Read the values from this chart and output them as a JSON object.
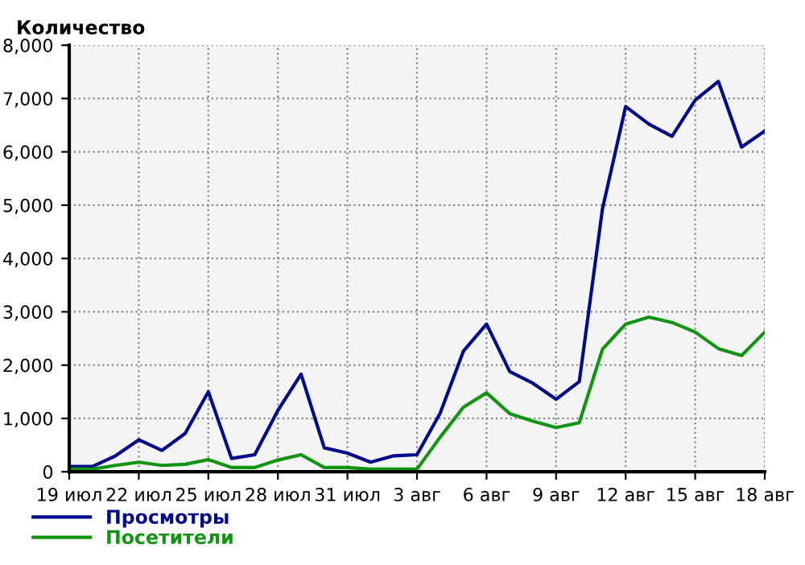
{
  "chart_data": {
    "type": "line",
    "title": "Количество",
    "categories": [
      "19 июл",
      null,
      null,
      "22 июл",
      null,
      null,
      "25 июл",
      null,
      null,
      "28 июл",
      null,
      null,
      "31 июл",
      null,
      null,
      "3 авг",
      null,
      null,
      "6 авг",
      null,
      null,
      "9 авг",
      null,
      null,
      "12 авг",
      null,
      null,
      "15 авг",
      null,
      null,
      "18 авг"
    ],
    "series": [
      {
        "name": "Просмотры",
        "color": "#000c8c",
        "values": [
          100,
          100,
          300,
          600,
          400,
          720,
          1500,
          250,
          320,
          1150,
          1830,
          450,
          350,
          180,
          300,
          320,
          1100,
          2260,
          2770,
          1880,
          1660,
          1360,
          1690,
          4930,
          6850,
          6520,
          6290,
          6970,
          7320,
          6090,
          6390
        ]
      },
      {
        "name": "Посетители",
        "color": "#119411",
        "values": [
          50,
          50,
          120,
          180,
          120,
          140,
          230,
          80,
          80,
          220,
          320,
          80,
          80,
          50,
          50,
          50,
          650,
          1210,
          1480,
          1090,
          950,
          830,
          920,
          2300,
          2770,
          2900,
          2800,
          2620,
          2310,
          2180,
          2620
        ]
      }
    ],
    "ylim": [
      0,
      8000
    ],
    "yticks": [
      {
        "value": 0,
        "label": "0"
      },
      {
        "value": 1000,
        "label": "1,000"
      },
      {
        "value": 2000,
        "label": "2,000"
      },
      {
        "value": 3000,
        "label": "3,000"
      },
      {
        "value": 4000,
        "label": "4,000"
      },
      {
        "value": 5000,
        "label": "5,000"
      },
      {
        "value": 6000,
        "label": "6,000"
      },
      {
        "value": 7000,
        "label": "7,000"
      },
      {
        "value": 8000,
        "label": "8,000"
      }
    ],
    "grid": true,
    "legend": "bottom left",
    "marker": "none",
    "line_style": "solid"
  }
}
